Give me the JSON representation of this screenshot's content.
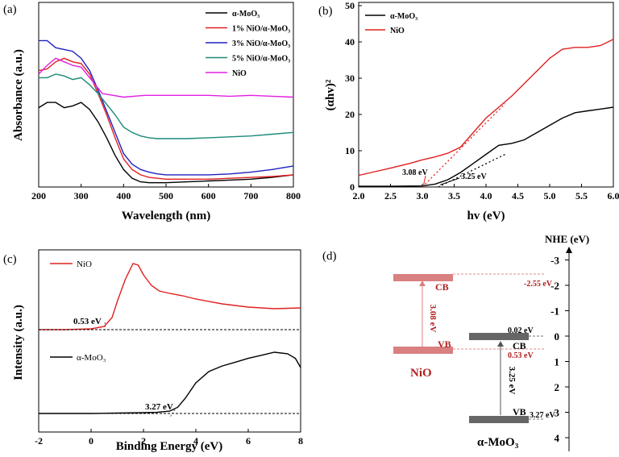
{
  "chart_data": [
    {
      "panel_label": "(a)",
      "type": "line",
      "xlabel": "Wavelength (nm)",
      "ylabel": "Absorbance (a.u.)",
      "xlim": [
        200,
        800
      ],
      "ylim": [
        0,
        1
      ],
      "xticks": [
        "200",
        "300",
        "400",
        "500",
        "600",
        "700",
        "800"
      ],
      "legend_position": "top-right",
      "series": [
        {
          "name": "α-MoO₃",
          "color": "#000000",
          "x": [
            200,
            220,
            240,
            260,
            280,
            300,
            320,
            340,
            360,
            380,
            400,
            420,
            440,
            460,
            480,
            500,
            550,
            600,
            650,
            700,
            750,
            800
          ],
          "y": [
            0.44,
            0.47,
            0.47,
            0.44,
            0.45,
            0.47,
            0.43,
            0.36,
            0.27,
            0.17,
            0.09,
            0.04,
            0.02,
            0.015,
            0.015,
            0.015,
            0.02,
            0.025,
            0.03,
            0.035,
            0.045,
            0.06
          ]
        },
        {
          "name": "1% NiO/α-MoO₃",
          "color": "#e02020",
          "x": [
            200,
            220,
            240,
            260,
            280,
            300,
            320,
            340,
            360,
            380,
            400,
            420,
            440,
            460,
            480,
            500,
            550,
            600,
            650,
            700,
            750,
            800
          ],
          "y": [
            0.65,
            0.66,
            0.7,
            0.72,
            0.7,
            0.69,
            0.63,
            0.52,
            0.4,
            0.27,
            0.15,
            0.09,
            0.06,
            0.045,
            0.04,
            0.035,
            0.035,
            0.035,
            0.04,
            0.045,
            0.05,
            0.06
          ]
        },
        {
          "name": "3% NiO/α-MoO₃",
          "color": "#2020c0",
          "x": [
            200,
            220,
            240,
            260,
            280,
            300,
            320,
            340,
            360,
            380,
            400,
            420,
            440,
            460,
            480,
            500,
            550,
            600,
            650,
            700,
            750,
            800
          ],
          "y": [
            0.82,
            0.82,
            0.78,
            0.77,
            0.76,
            0.72,
            0.65,
            0.54,
            0.42,
            0.3,
            0.18,
            0.12,
            0.09,
            0.075,
            0.065,
            0.06,
            0.06,
            0.06,
            0.065,
            0.075,
            0.09,
            0.11
          ]
        },
        {
          "name": "5% NiO/α-MoO₃",
          "color": "#1a8a78",
          "x": [
            200,
            220,
            240,
            260,
            280,
            300,
            320,
            340,
            360,
            380,
            400,
            420,
            440,
            460,
            480,
            500,
            550,
            600,
            650,
            700,
            750,
            800
          ],
          "y": [
            0.61,
            0.61,
            0.63,
            0.62,
            0.6,
            0.61,
            0.57,
            0.52,
            0.46,
            0.4,
            0.33,
            0.3,
            0.28,
            0.27,
            0.265,
            0.265,
            0.265,
            0.27,
            0.275,
            0.28,
            0.29,
            0.3
          ]
        },
        {
          "name": "NiO",
          "color": "#e020e0",
          "x": [
            200,
            220,
            240,
            260,
            280,
            300,
            350,
            400,
            450,
            500,
            550,
            600,
            650,
            700,
            750,
            800
          ],
          "y": [
            0.63,
            0.68,
            0.72,
            0.7,
            0.68,
            0.67,
            0.52,
            0.5,
            0.51,
            0.51,
            0.51,
            0.51,
            0.505,
            0.51,
            0.505,
            0.5
          ]
        }
      ]
    },
    {
      "panel_label": "(b)",
      "type": "line",
      "xlabel": "hv (eV)",
      "ylabel": "(αhv)²",
      "xlim": [
        2.0,
        6.0
      ],
      "ylim": [
        0,
        50
      ],
      "xticks": [
        "2.0",
        "2.5",
        "3.0",
        "3.5",
        "4.0",
        "4.5",
        "5.0",
        "5.5",
        "6.0"
      ],
      "yticks": [
        "0",
        "10",
        "20",
        "30",
        "40",
        "50"
      ],
      "legend_position": "top-left",
      "series": [
        {
          "name": "α-MoO₃",
          "color": "#000000",
          "x": [
            2.0,
            2.5,
            3.0,
            3.2,
            3.4,
            3.6,
            3.8,
            4.0,
            4.2,
            4.4,
            4.6,
            4.8,
            5.0,
            5.2,
            5.4,
            5.6,
            5.8,
            6.0
          ],
          "y": [
            0.2,
            0.2,
            0.3,
            0.8,
            2.0,
            4.0,
            6.5,
            9.0,
            11.5,
            12.0,
            13.0,
            15.0,
            17.0,
            19.0,
            20.5,
            21.0,
            21.5,
            22.0
          ]
        },
        {
          "name": "NiO",
          "color": "#e02020",
          "x": [
            2.0,
            2.2,
            2.5,
            2.8,
            3.0,
            3.2,
            3.4,
            3.6,
            3.8,
            4.0,
            4.2,
            4.4,
            4.6,
            4.8,
            5.0,
            5.2,
            5.4,
            5.6,
            5.8,
            6.0
          ],
          "y": [
            3.2,
            4.0,
            5.2,
            6.5,
            7.5,
            8.3,
            9.3,
            11.0,
            15.0,
            19.0,
            22.0,
            25.0,
            28.5,
            32.0,
            35.5,
            38.0,
            38.5,
            38.5,
            39.0,
            40.7
          ]
        }
      ],
      "tangent_lines": [
        {
          "x": [
            3.0,
            4.3
          ],
          "y": [
            0,
            23
          ]
        },
        {
          "x": [
            3.25,
            4.3
          ],
          "y": [
            0,
            9
          ]
        }
      ],
      "annotations": [
        "3.08 eV",
        "3.25 eV"
      ]
    },
    {
      "panel_label": "(c)",
      "type": "line",
      "xlabel": "Binding Energy (eV)",
      "ylabel": "Intensity (a.u.)",
      "xlim": [
        -2,
        8
      ],
      "xticks": [
        "-2",
        "0",
        "2",
        "4",
        "6",
        "8"
      ],
      "series": [
        {
          "name": "NiO",
          "color": "#e02020",
          "x": [
            -2,
            -1,
            0,
            0.5,
            0.8,
            1.0,
            1.3,
            1.6,
            1.8,
            2.0,
            2.3,
            2.6,
            3.0,
            3.5,
            4.0,
            5.0,
            6.0,
            7.0,
            8.0
          ],
          "y": [
            0.0,
            0.0,
            0.01,
            0.04,
            0.15,
            0.35,
            0.62,
            0.82,
            0.8,
            0.68,
            0.55,
            0.48,
            0.45,
            0.42,
            0.38,
            0.32,
            0.28,
            0.26,
            0.27
          ]
        },
        {
          "name": "α-MoO₃",
          "color": "#000000",
          "x": [
            -2,
            0,
            1,
            2,
            2.5,
            3.0,
            3.3,
            3.6,
            4.0,
            4.5,
            5.0,
            5.5,
            6.0,
            6.5,
            7.0,
            7.5,
            7.8,
            8.0
          ],
          "y": [
            0.0,
            0.0,
            0.005,
            0.01,
            0.015,
            0.03,
            0.08,
            0.2,
            0.4,
            0.55,
            0.62,
            0.67,
            0.72,
            0.76,
            0.8,
            0.78,
            0.72,
            0.6
          ]
        }
      ],
      "annotations": [
        "0.53 eV",
        "3.27 eV"
      ]
    },
    {
      "panel_label": "(d)",
      "type": "diagram",
      "axis_title": "NHE (eV)",
      "yticks": [
        "-3",
        "-2",
        "-1",
        "0",
        "1",
        "2",
        "3",
        "4"
      ],
      "NiO": {
        "name": "NiO",
        "cb_label": "CB",
        "vb_label": "VB",
        "gap": "3.08 eV",
        "cb_value": "-2.55 eV",
        "vb_value": "0.53 eV"
      },
      "MoO3": {
        "name": "α-MoO₃",
        "cb_label": "CB",
        "vb_label": "VB",
        "gap": "3.25 eV",
        "cb_value": "0.02 eV",
        "vb_value": "3.27 eV"
      }
    }
  ],
  "colors": {
    "red": "#e02020",
    "black": "#000000",
    "nio_band": "#d98080",
    "moo3_band": "#666666",
    "dark_red": "#b02020"
  }
}
